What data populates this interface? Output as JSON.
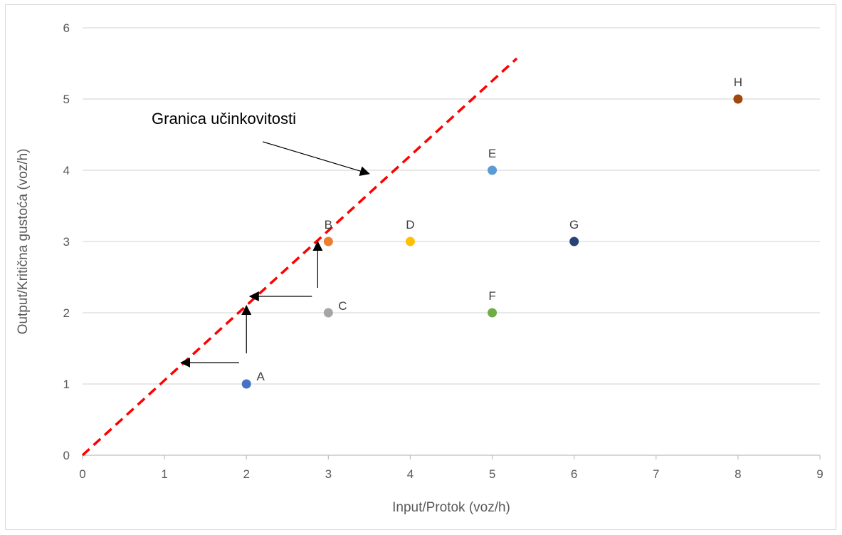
{
  "chart_data": {
    "type": "scatter",
    "xlabel": "Input/Protok (voz/h)",
    "ylabel": "Output/Kritična gustoća (voz/h)",
    "xlim": [
      0,
      9
    ],
    "ylim": [
      0,
      6
    ],
    "x_ticks": [
      "0",
      "1",
      "2",
      "3",
      "4",
      "5",
      "6",
      "7",
      "8",
      "9"
    ],
    "y_ticks": [
      "0",
      "1",
      "2",
      "3",
      "4",
      "5",
      "6"
    ],
    "grid": "horizontal",
    "points": [
      {
        "label": "A",
        "x": 2,
        "y": 1,
        "color": "#4472C4"
      },
      {
        "label": "B",
        "x": 3,
        "y": 3,
        "color": "#ED7D31"
      },
      {
        "label": "C",
        "x": 3,
        "y": 2,
        "color": "#A5A5A5"
      },
      {
        "label": "D",
        "x": 4,
        "y": 3,
        "color": "#FFC000"
      },
      {
        "label": "E",
        "x": 5,
        "y": 4,
        "color": "#5B9BD5"
      },
      {
        "label": "F",
        "x": 5,
        "y": 2,
        "color": "#70AD47"
      },
      {
        "label": "G",
        "x": 6,
        "y": 3,
        "color": "#264478"
      },
      {
        "label": "H",
        "x": 8,
        "y": 5,
        "color": "#9E480E"
      }
    ],
    "frontier": {
      "from": [
        0,
        0
      ],
      "to": [
        5.3,
        5.57
      ],
      "color": "#FF0000",
      "style": "dashed"
    },
    "annotation": {
      "text": "Granica učinkovitosti",
      "arrow_from": [
        2.2,
        4.4
      ],
      "arrow_to": [
        3.5,
        3.95
      ]
    },
    "projection_arrows": [
      {
        "from": [
          1.91,
          1.3
        ],
        "to": [
          1.2,
          1.3
        ]
      },
      {
        "from": [
          2.0,
          1.43
        ],
        "to": [
          2.0,
          2.1
        ]
      },
      {
        "from": [
          2.8,
          2.23
        ],
        "to": [
          2.04,
          2.23
        ]
      },
      {
        "from": [
          2.87,
          2.35
        ],
        "to": [
          2.87,
          3.0
        ]
      }
    ]
  }
}
